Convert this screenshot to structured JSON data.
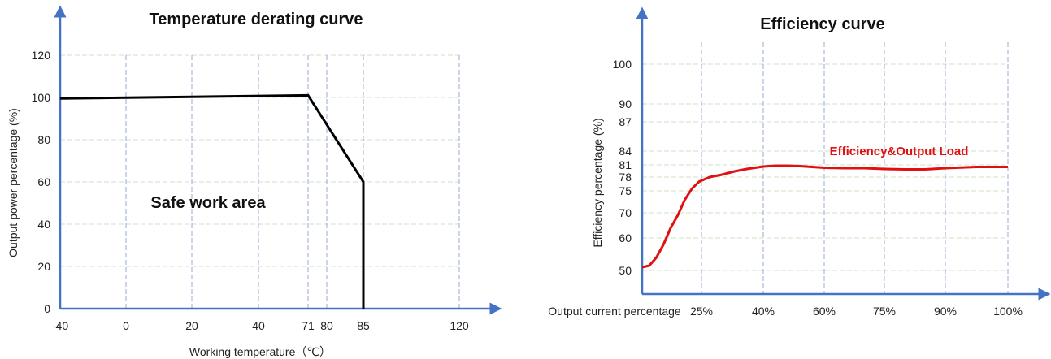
{
  "chart_data": [
    {
      "type": "line",
      "title": "Temperature derating curve",
      "xlabel": "Working temperature（℃）",
      "ylabel": "Output power percentage (%)",
      "annotation": "Safe work area",
      "x_ticks": [
        "-40",
        "0",
        "20",
        "40",
        "71",
        "80",
        "85",
        "120"
      ],
      "y_ticks": [
        "0",
        "20",
        "40",
        "60",
        "80",
        "100",
        "120"
      ],
      "ylim": [
        0,
        120
      ],
      "series": [
        {
          "color": "#000000",
          "points": [
            {
              "x": "-40",
              "y": 99.5
            },
            {
              "x": "71",
              "y": 101
            },
            {
              "x": "85",
              "y": 60
            },
            {
              "x": "85",
              "y": 0
            }
          ]
        }
      ],
      "grid": true
    },
    {
      "type": "line",
      "title": "Efficiency curve",
      "xlabel": "Output current percentage",
      "ylabel": "Efficiency percentage (%)",
      "x_ticks": [
        "25%",
        "40%",
        "60%",
        "75%",
        "90%",
        "100%"
      ],
      "y_ticks": [
        "50",
        "60",
        "70",
        "75",
        "78",
        "81",
        "84",
        "87",
        "90",
        "100"
      ],
      "series": [
        {
          "name": "Efficiency&Output Load",
          "color": "#e01010",
          "points": [
            {
              "x": 0,
              "y": 51
            },
            {
              "x": 3,
              "y": 51.5
            },
            {
              "x": 6,
              "y": 54
            },
            {
              "x": 9,
              "y": 58
            },
            {
              "x": 12,
              "y": 64
            },
            {
              "x": 15,
              "y": 69
            },
            {
              "x": 18,
              "y": 73
            },
            {
              "x": 21,
              "y": 75.5
            },
            {
              "x": 24,
              "y": 77
            },
            {
              "x": 27,
              "y": 78
            },
            {
              "x": 30,
              "y": 78.6
            },
            {
              "x": 33,
              "y": 79.4
            },
            {
              "x": 36,
              "y": 80
            },
            {
              "x": 40,
              "y": 80.6
            },
            {
              "x": 44,
              "y": 80.8
            },
            {
              "x": 48,
              "y": 80.8
            },
            {
              "x": 52,
              "y": 80.7
            },
            {
              "x": 56,
              "y": 80.5
            },
            {
              "x": 60,
              "y": 80.3
            },
            {
              "x": 65,
              "y": 80.2
            },
            {
              "x": 70,
              "y": 80.2
            },
            {
              "x": 75,
              "y": 80
            },
            {
              "x": 80,
              "y": 79.9
            },
            {
              "x": 85,
              "y": 79.9
            },
            {
              "x": 90,
              "y": 80.2
            },
            {
              "x": 95,
              "y": 80.5
            },
            {
              "x": 100,
              "y": 80.5
            }
          ]
        }
      ],
      "grid": true
    }
  ]
}
